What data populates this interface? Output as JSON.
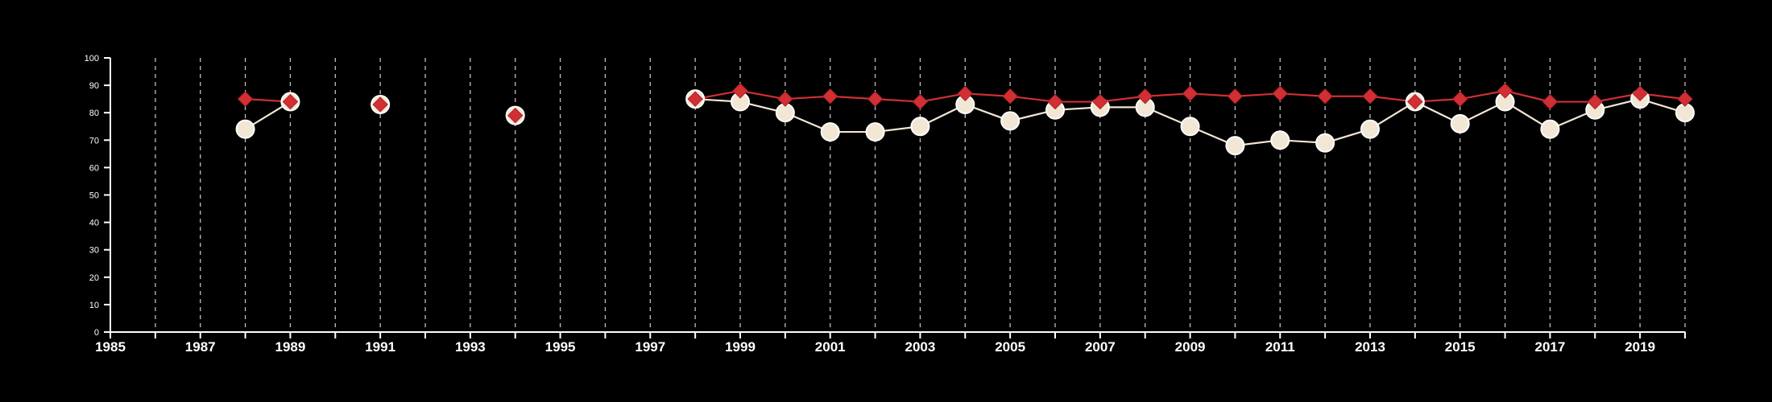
{
  "chart_data": {
    "type": "line",
    "title": "",
    "xlabel": "",
    "ylabel": "",
    "xlim": [
      1985,
      2020
    ],
    "ylim": [
      0,
      100
    ],
    "grid": {
      "x": true,
      "y": false
    },
    "legend": "none",
    "x_tick_labels": [
      "1985",
      "1987",
      "1989",
      "1991",
      "1993",
      "1995",
      "1997",
      "1999",
      "2001",
      "2003",
      "2005",
      "2007",
      "2009",
      "2011",
      "2013",
      "2015",
      "2017",
      "2019"
    ],
    "y_tick_labels": [
      "0",
      "10",
      "20",
      "30",
      "40",
      "50",
      "60",
      "70",
      "80",
      "90",
      "100"
    ],
    "series": [
      {
        "marker": "diamond",
        "color": "#d12f34",
        "points": [
          [
            1988,
            85
          ],
          [
            1989,
            84
          ],
          [
            1991,
            83
          ],
          [
            1994,
            79
          ],
          [
            1998,
            85
          ],
          [
            1999,
            88
          ],
          [
            2000,
            85
          ],
          [
            2001,
            86
          ],
          [
            2002,
            85
          ],
          [
            2003,
            84
          ],
          [
            2004,
            87
          ],
          [
            2005,
            86
          ],
          [
            2006,
            84
          ],
          [
            2007,
            84
          ],
          [
            2008,
            86
          ],
          [
            2009,
            87
          ],
          [
            2010,
            86
          ],
          [
            2011,
            87
          ],
          [
            2012,
            86
          ],
          [
            2013,
            86
          ],
          [
            2014,
            84
          ],
          [
            2015,
            85
          ],
          [
            2016,
            88
          ],
          [
            2017,
            84
          ],
          [
            2018,
            84
          ],
          [
            2019,
            87
          ],
          [
            2020,
            85
          ]
        ]
      },
      {
        "marker": "circle",
        "color": "#f2e6d4",
        "points": [
          [
            1988,
            74
          ],
          [
            1989,
            84
          ],
          [
            1991,
            83
          ],
          [
            1994,
            79
          ],
          [
            1998,
            85
          ],
          [
            1999,
            84
          ],
          [
            2000,
            80
          ],
          [
            2001,
            73
          ],
          [
            2002,
            73
          ],
          [
            2003,
            75
          ],
          [
            2004,
            83
          ],
          [
            2005,
            77
          ],
          [
            2006,
            81
          ],
          [
            2007,
            82
          ],
          [
            2008,
            82
          ],
          [
            2009,
            75
          ],
          [
            2010,
            68
          ],
          [
            2011,
            70
          ],
          [
            2012,
            69
          ],
          [
            2013,
            74
          ],
          [
            2014,
            84
          ],
          [
            2015,
            76
          ],
          [
            2016,
            84
          ],
          [
            2017,
            74
          ],
          [
            2018,
            81
          ],
          [
            2019,
            85
          ],
          [
            2020,
            80
          ]
        ]
      }
    ],
    "colors": {
      "background": "#000000",
      "axis": "#ffffff",
      "grid": "#bfbfbf"
    }
  }
}
